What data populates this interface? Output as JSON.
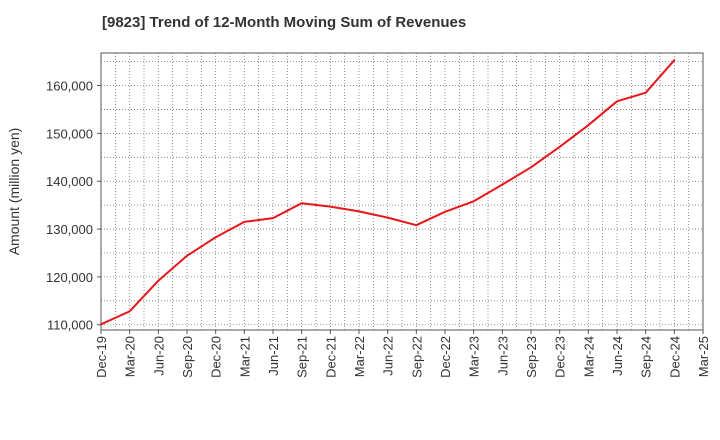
{
  "chart_data": {
    "type": "line",
    "title": "[9823]  Trend of 12-Month Moving Sum of Revenues",
    "xlabel": "",
    "ylabel": "Amount (million yen)",
    "x": [
      "Dec-19",
      "Mar-20",
      "Jun-20",
      "Sep-20",
      "Dec-20",
      "Mar-21",
      "Jun-21",
      "Sep-21",
      "Dec-21",
      "Mar-22",
      "Jun-22",
      "Sep-22",
      "Dec-22",
      "Mar-23",
      "Jun-23",
      "Sep-23",
      "Dec-23",
      "Mar-24",
      "Jun-24",
      "Sep-24",
      "Dec-24",
      "Mar-25"
    ],
    "series": [
      {
        "color": "#e8161b",
        "values": [
          110100,
          112800,
          119200,
          124400,
          128300,
          131500,
          132300,
          135400,
          134700,
          133700,
          132400,
          130800,
          133600,
          135800,
          139300,
          142900,
          147200,
          151700,
          156700,
          158500,
          165300,
          null
        ]
      }
    ],
    "yticks": [
      110000,
      120000,
      130000,
      140000,
      150000,
      160000
    ],
    "ytick_labels": [
      "110,000",
      "120,000",
      "130,000",
      "140,000",
      "150,000",
      "160,000"
    ],
    "ylim": [
      108900,
      166800
    ],
    "grid": true,
    "grid_style": "dotted",
    "legend": "none"
  }
}
